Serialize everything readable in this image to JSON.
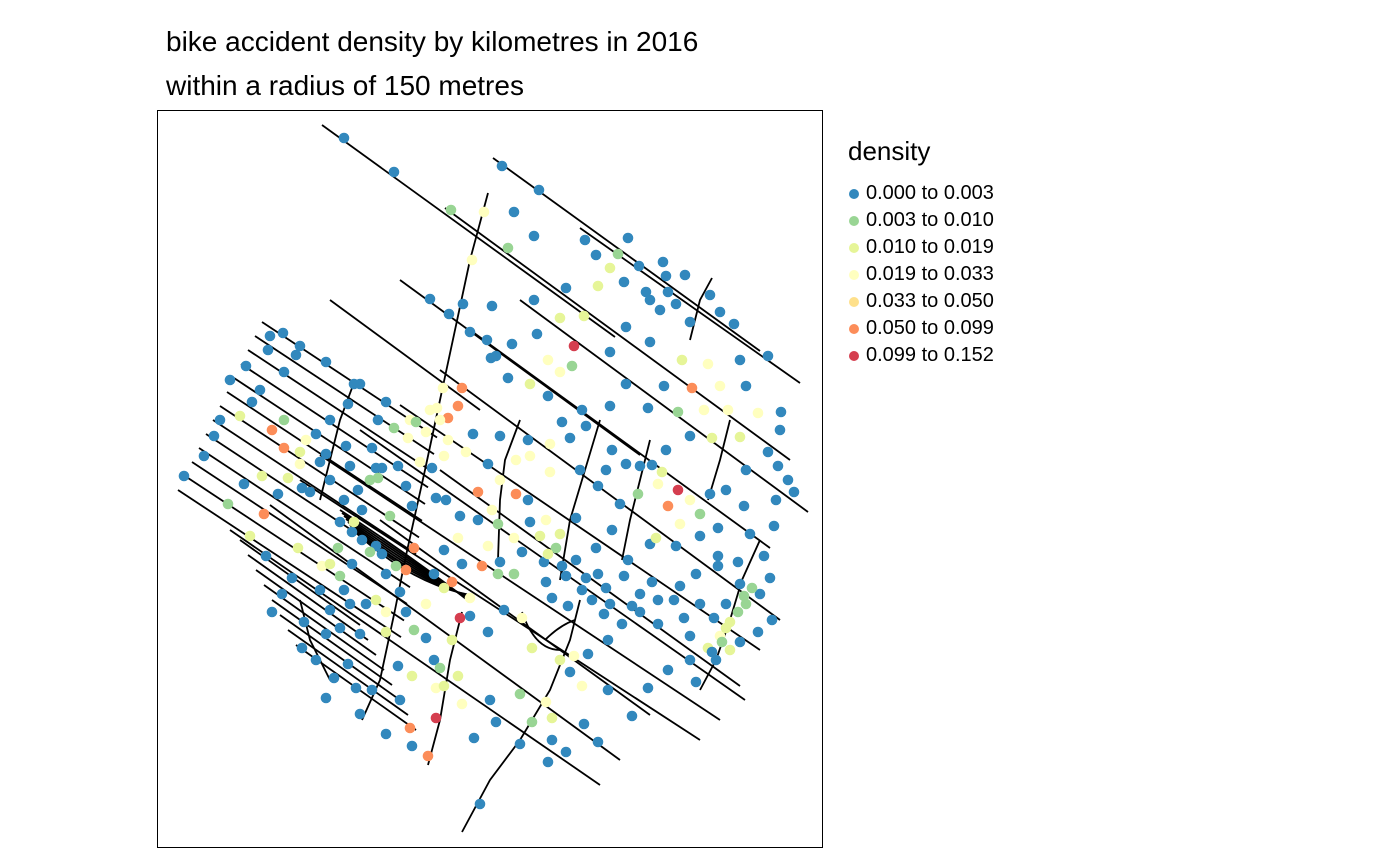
{
  "chart_data": {
    "type": "scatter",
    "title": "bike accident density by kilometres in 2016",
    "subtitle": "within a radius of 150 metres",
    "legend": {
      "title": "density",
      "placement": "right",
      "classes": [
        {
          "label": "0.000 to 0.003",
          "color": "#3288BD"
        },
        {
          "label": "0.003 to 0.010",
          "color": "#99D594"
        },
        {
          "label": "0.010 to 0.019",
          "color": "#E6F598"
        },
        {
          "label": "0.019 to 0.033",
          "color": "#FFFFBF"
        },
        {
          "label": "0.033 to 0.050",
          "color": "#FEE08B"
        },
        {
          "label": "0.050 to 0.099",
          "color": "#FC8D59"
        },
        {
          "label": "0.099 to 0.152",
          "color": "#D53E4F"
        }
      ]
    },
    "frame": true,
    "grid": false,
    "axes_shown": false
  }
}
